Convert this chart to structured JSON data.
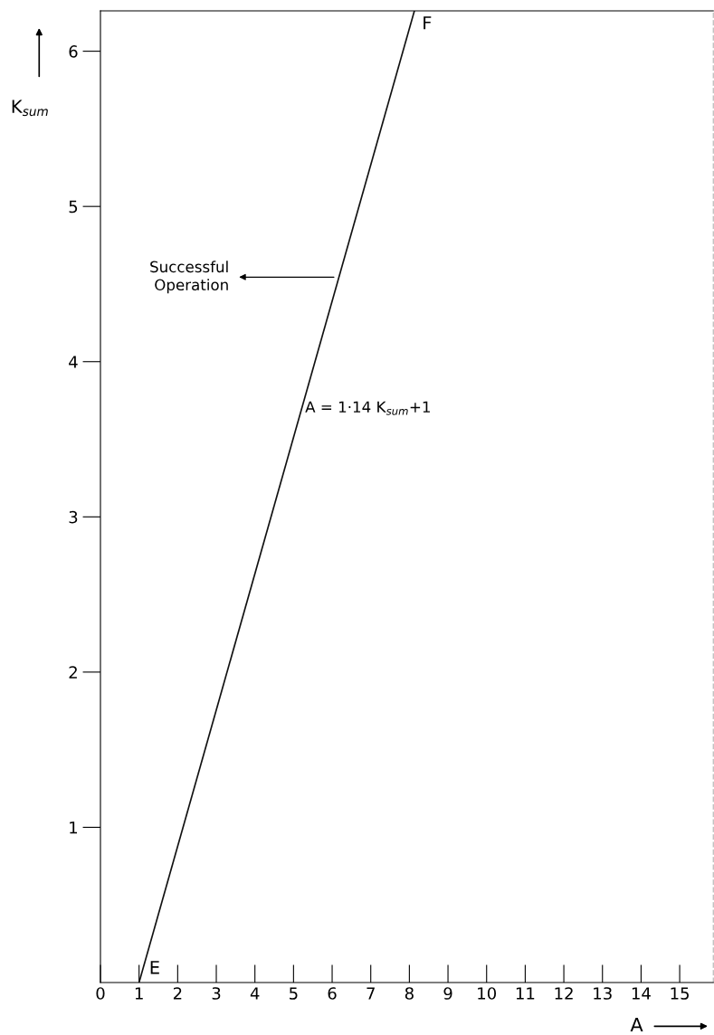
{
  "chart_data": {
    "type": "line",
    "xlabel": "A",
    "ylabel": "K$_{sum}$",
    "x": [
      1,
      8.13
    ],
    "series": [
      {
        "color": "#111111",
        "values": [
          0,
          6.26
        ]
      }
    ],
    "xlim": [
      0,
      15.87
    ],
    "ylim": [
      0,
      6.26
    ],
    "xticks": [
      0,
      1,
      2,
      3,
      4,
      5,
      6,
      7,
      8,
      9,
      10,
      11,
      12,
      13,
      14,
      15
    ],
    "yticks": [
      1,
      2,
      3,
      4,
      5,
      6
    ],
    "grid": false,
    "legend": false,
    "marker": "none",
    "line_style": "solid",
    "annotations": [
      {
        "text": "E",
        "x": 1,
        "y": 0
      },
      {
        "text": "F",
        "x": 8.13,
        "y": 6.26
      },
      "Successful\nOperation",
      {
        "text": "A = 1·14 K$_{sum}$+1",
        "x": 5.3,
        "y": 3.7
      }
    ]
  }
}
